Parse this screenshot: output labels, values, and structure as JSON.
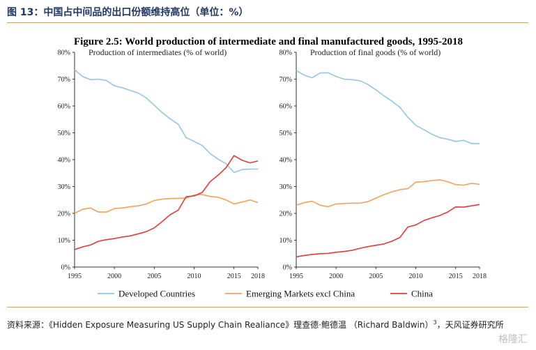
{
  "caption": "图 13：中国占中间品的出口份额维持高位（单位：%）",
  "source_text": "资料来源：《Hidden Exposure Measuring US Supply Chain Realiance》理查德·鲍德温 （Richard Baldwin）",
  "source_sup": "3",
  "source_suffix": "，天风证券研究所",
  "watermark": "格隆汇",
  "colors": {
    "developed": "#93c6e3",
    "emerging": "#f5a25a",
    "china": "#e23b3b",
    "rule": "#c9a46a"
  },
  "chart_data": {
    "title": "Figure 2.5: World production of intermediate and final manufactured goods, 1995-2018",
    "type": "line",
    "x": [
      1995,
      1996,
      1997,
      1998,
      1999,
      2000,
      2001,
      2002,
      2003,
      2004,
      2005,
      2006,
      2007,
      2008,
      2009,
      2010,
      2011,
      2012,
      2013,
      2014,
      2015,
      2016,
      2017,
      2018
    ],
    "ylim": [
      0,
      80
    ],
    "yticks": [
      0,
      10,
      20,
      30,
      40,
      50,
      60,
      70,
      80
    ],
    "xticks": [
      1995,
      2000,
      2005,
      2010,
      2015,
      2018
    ],
    "ytick_suffix": "%",
    "legend": [
      "Developed Countries",
      "Emerging Markets excl China",
      "China"
    ],
    "legend_position": "bottom",
    "panels": [
      {
        "subtitle": "Production of intermediates (% of world)",
        "series": [
          {
            "name": "Developed Countries",
            "values": [
              73.5,
              71,
              69.8,
              70,
              69.5,
              67.5,
              66.8,
              65.8,
              64.8,
              63,
              60.3,
              57.5,
              55.2,
              53.2,
              48.2,
              46.8,
              45.3,
              42.3,
              40.2,
              38.5,
              35.2,
              36.3,
              36.5,
              36.5
            ]
          },
          {
            "name": "Emerging Markets excl China",
            "values": [
              20,
              21.5,
              22,
              20.5,
              20.5,
              21.8,
              22,
              22.5,
              22.8,
              23.5,
              24.8,
              25.3,
              25.5,
              25.6,
              25.7,
              26.8,
              27,
              26.3,
              26,
              25,
              23.5,
              24.2,
              25,
              24
            ]
          },
          {
            "name": "China",
            "values": [
              6.5,
              7.5,
              8.2,
              9.6,
              10.2,
              10.6,
              11.2,
              11.6,
              12.4,
              13.2,
              14.6,
              17,
              19.5,
              21.2,
              26.2,
              26.5,
              27.8,
              31.8,
              34.2,
              37,
              41.5,
              39.8,
              38.8,
              39.5
            ]
          }
        ]
      },
      {
        "subtitle": "Production of final goods (% of world)",
        "series": [
          {
            "name": "Developed Countries",
            "values": [
              73.2,
              71.5,
              70.5,
              72.3,
              72.4,
              71,
              70,
              69.8,
              69.4,
              68,
              66,
              63.8,
              61.8,
              59.5,
              55.8,
              52.8,
              51.2,
              49.5,
              48.2,
              47.6,
              46.8,
              47.2,
              46,
              46
            ]
          },
          {
            "name": "Emerging Markets excl China",
            "values": [
              23,
              24,
              24.5,
              23,
              22.5,
              23.5,
              23.7,
              23.8,
              23.8,
              24.4,
              25.7,
              27,
              28,
              28.8,
              29.2,
              31.6,
              31.8,
              32.2,
              32.5,
              31.8,
              30.7,
              30.5,
              31.2,
              30.8
            ]
          },
          {
            "name": "China",
            "values": [
              3.8,
              4.3,
              4.7,
              5,
              5.1,
              5.5,
              5.8,
              6.2,
              7,
              7.6,
              8.1,
              8.6,
              9.6,
              11,
              14.9,
              15.7,
              17.3,
              18.3,
              19.2,
              20.5,
              22.4,
              22.3,
              22.8,
              23.3
            ]
          }
        ]
      }
    ]
  }
}
